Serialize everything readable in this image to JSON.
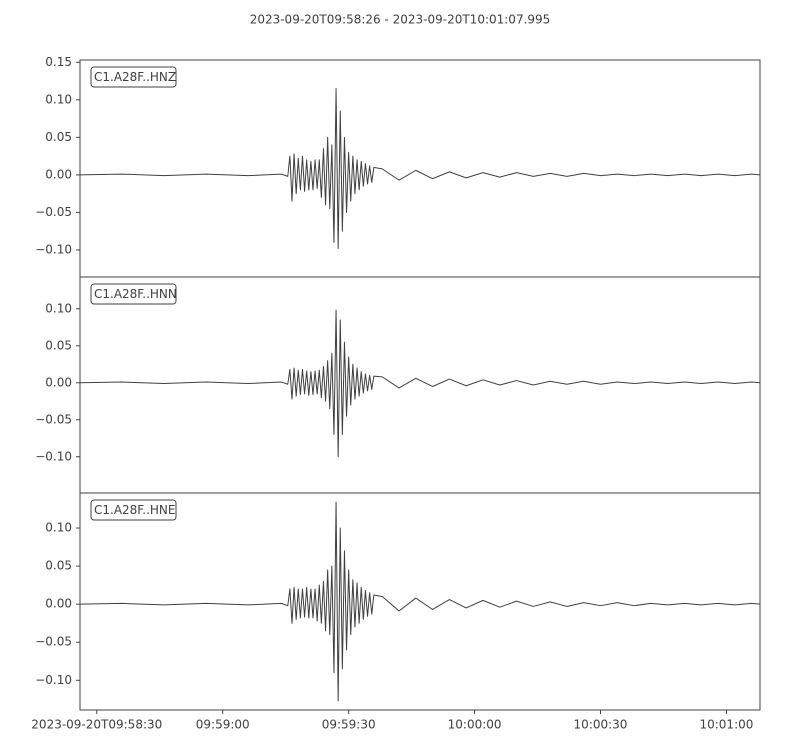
{
  "chart_data": [
    {
      "type": "line",
      "title": "2023-09-20T09:58:26  -  2023-09-20T10:01:07.995",
      "label": "C1.A28F..HNZ",
      "color": "#404040",
      "x": [
        0,
        10,
        20,
        30,
        40,
        48,
        49.5,
        50,
        50.5,
        51,
        51.5,
        52,
        52.5,
        53,
        53.5,
        54,
        54.5,
        55,
        55.5,
        56,
        56.5,
        57,
        57.5,
        58,
        58.5,
        59,
        59.5,
        60,
        60.5,
        61,
        61.5,
        62,
        62.5,
        63,
        63.5,
        64,
        64.5,
        65,
        65.5,
        66,
        66.5,
        67,
        67.5,
        68,
        68.5,
        69,
        69.5,
        70,
        72,
        76,
        80,
        84,
        88,
        92,
        96,
        100,
        104,
        108,
        112,
        116,
        120,
        124,
        128,
        132,
        136,
        140,
        144,
        148,
        152,
        156,
        160,
        161.995
      ],
      "values": [
        0,
        0.001,
        -0.001,
        0.001,
        -0.001,
        0.001,
        -0.002,
        0.025,
        -0.035,
        0.028,
        -0.025,
        0.022,
        -0.02,
        0.025,
        -0.022,
        0.02,
        -0.02,
        0.018,
        -0.02,
        0.02,
        -0.018,
        0.02,
        -0.03,
        0.035,
        -0.04,
        0.05,
        -0.045,
        0.04,
        -0.09,
        0.115,
        -0.098,
        0.085,
        -0.075,
        0.05,
        -0.05,
        0.03,
        -0.035,
        0.025,
        -0.025,
        0.02,
        -0.02,
        0.018,
        -0.015,
        0.015,
        -0.012,
        0.012,
        -0.01,
        0.01,
        0.008,
        -0.007,
        0.006,
        -0.005,
        0.004,
        -0.004,
        0.003,
        -0.003,
        0.003,
        -0.002,
        0.002,
        -0.002,
        0.002,
        -0.001,
        0.001,
        -0.001,
        0.001,
        -0.001,
        0.001,
        -0.001,
        0.001,
        -0.001,
        0.001,
        0
      ],
      "xlim": [
        0,
        161.995
      ],
      "ylim": [
        -0.136,
        0.153
      ],
      "yticks": [
        {
          "value": -0.1,
          "label": "−0.10"
        },
        {
          "value": -0.05,
          "label": "−0.05"
        },
        {
          "value": 0,
          "label": "0.00"
        },
        {
          "value": 0.05,
          "label": "0.05"
        },
        {
          "value": 0.1,
          "label": "0.10"
        },
        {
          "value": 0.15,
          "label": "0.15"
        }
      ]
    },
    {
      "type": "line",
      "label": "C1.A28F..HNN",
      "color": "#404040",
      "x": [
        0,
        10,
        20,
        30,
        40,
        48,
        49.5,
        50,
        50.5,
        51,
        51.5,
        52,
        52.5,
        53,
        53.5,
        54,
        54.5,
        55,
        55.5,
        56,
        56.5,
        57,
        57.5,
        58,
        58.5,
        59,
        59.5,
        60,
        60.5,
        61,
        61.5,
        62,
        62.5,
        63,
        63.5,
        64,
        64.5,
        65,
        65.5,
        66,
        66.5,
        67,
        67.5,
        68,
        68.5,
        69,
        69.5,
        70,
        72,
        76,
        80,
        84,
        88,
        92,
        96,
        100,
        104,
        108,
        112,
        116,
        120,
        124,
        128,
        132,
        136,
        140,
        144,
        148,
        152,
        156,
        160,
        161.995
      ],
      "values": [
        0,
        0.001,
        -0.001,
        0.001,
        -0.001,
        0.001,
        -0.002,
        0.018,
        -0.022,
        0.02,
        -0.018,
        0.017,
        -0.016,
        0.018,
        -0.015,
        0.016,
        -0.017,
        0.015,
        -0.016,
        0.016,
        -0.015,
        0.017,
        -0.02,
        0.022,
        -0.025,
        0.03,
        -0.035,
        0.04,
        -0.07,
        0.098,
        -0.1,
        0.085,
        -0.07,
        0.055,
        -0.045,
        0.035,
        -0.03,
        0.025,
        -0.022,
        0.02,
        -0.018,
        0.015,
        -0.014,
        0.012,
        -0.011,
        0.01,
        -0.009,
        0.009,
        0.008,
        -0.007,
        0.006,
        -0.005,
        0.005,
        -0.004,
        0.004,
        -0.003,
        0.003,
        -0.003,
        0.002,
        -0.002,
        0.002,
        -0.002,
        0.001,
        -0.001,
        0.001,
        -0.001,
        0.001,
        -0.001,
        0.001,
        -0.001,
        0.001,
        0
      ],
      "xlim": [
        0,
        161.995
      ],
      "ylim": [
        -0.149,
        0.143
      ],
      "yticks": [
        {
          "value": -0.1,
          "label": "−0.10"
        },
        {
          "value": -0.05,
          "label": "−0.05"
        },
        {
          "value": 0,
          "label": "0.00"
        },
        {
          "value": 0.05,
          "label": "0.05"
        },
        {
          "value": 0.1,
          "label": "0.10"
        }
      ]
    },
    {
      "type": "line",
      "label": "C1.A28F..HNE",
      "color": "#404040",
      "x": [
        0,
        10,
        20,
        30,
        40,
        48,
        49.5,
        50,
        50.5,
        51,
        51.5,
        52,
        52.5,
        53,
        53.5,
        54,
        54.5,
        55,
        55.5,
        56,
        56.5,
        57,
        57.5,
        58,
        58.5,
        59,
        59.5,
        60,
        60.5,
        61,
        61.5,
        62,
        62.5,
        63,
        63.5,
        64,
        64.5,
        65,
        65.5,
        66,
        66.5,
        67,
        67.5,
        68,
        68.5,
        69,
        69.5,
        70,
        72,
        76,
        80,
        84,
        88,
        92,
        96,
        100,
        104,
        108,
        112,
        116,
        120,
        124,
        128,
        132,
        136,
        140,
        144,
        148,
        152,
        156,
        160,
        161.995
      ],
      "values": [
        0,
        0.001,
        -0.001,
        0.001,
        -0.001,
        0.001,
        -0.002,
        0.02,
        -0.025,
        0.022,
        -0.02,
        0.02,
        -0.018,
        0.02,
        -0.017,
        0.022,
        -0.018,
        0.02,
        -0.018,
        0.02,
        -0.022,
        0.025,
        -0.025,
        0.03,
        -0.035,
        0.045,
        -0.04,
        0.05,
        -0.09,
        0.134,
        -0.127,
        0.1,
        -0.085,
        0.07,
        -0.06,
        0.045,
        -0.04,
        0.032,
        -0.03,
        0.028,
        -0.025,
        0.022,
        -0.02,
        0.018,
        -0.016,
        0.015,
        -0.013,
        0.012,
        0.01,
        -0.009,
        0.008,
        -0.007,
        0.006,
        -0.005,
        0.005,
        -0.004,
        0.004,
        -0.003,
        0.003,
        -0.003,
        0.002,
        -0.002,
        0.002,
        -0.002,
        0.001,
        -0.001,
        0.001,
        -0.001,
        0.001,
        -0.001,
        0.001,
        0
      ],
      "xlim": [
        0,
        161.995
      ],
      "ylim": [
        -0.139,
        0.146
      ],
      "yticks": [
        {
          "value": -0.1,
          "label": "−0.10"
        },
        {
          "value": -0.05,
          "label": "−0.05"
        },
        {
          "value": 0,
          "label": "0.00"
        },
        {
          "value": 0.05,
          "label": "0.05"
        },
        {
          "value": 0.1,
          "label": "0.10"
        }
      ],
      "xticks": [
        {
          "value": 4,
          "label": "2023-09-20T09:58:30"
        },
        {
          "value": 34,
          "label": "09:59:00"
        },
        {
          "value": 64,
          "label": "09:59:30"
        },
        {
          "value": 94,
          "label": "10:00:00"
        },
        {
          "value": 124,
          "label": "10:00:30"
        },
        {
          "value": 154,
          "label": "10:01:00"
        }
      ]
    }
  ]
}
